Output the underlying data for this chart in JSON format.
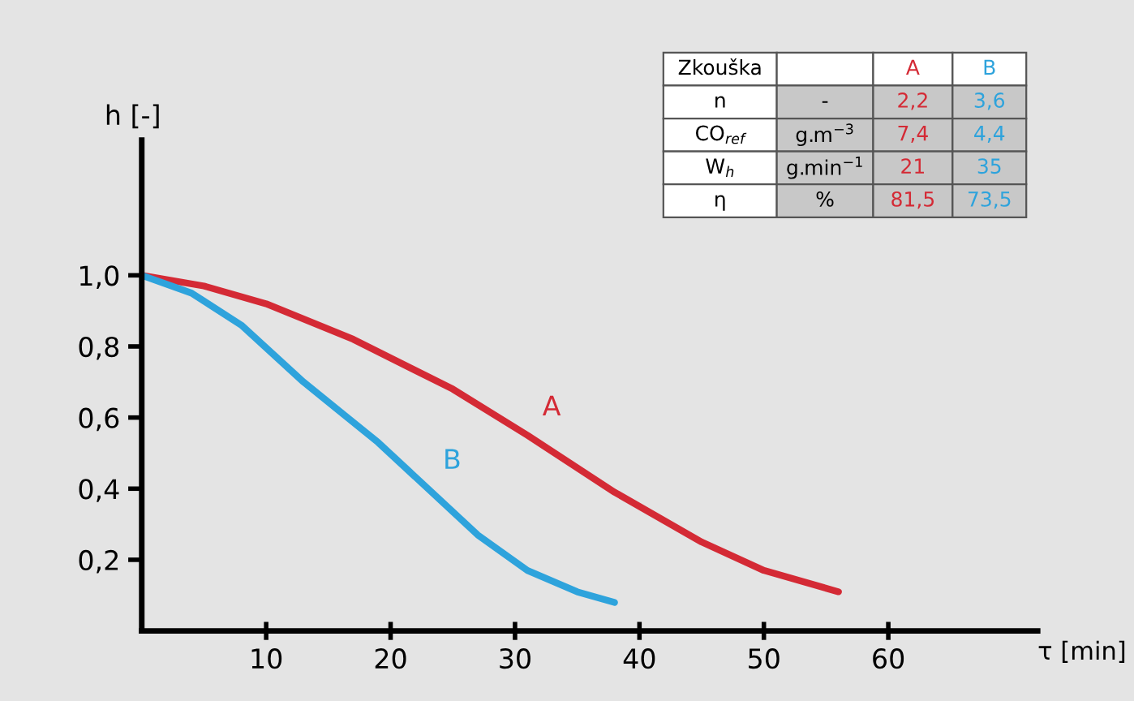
{
  "chart_data": {
    "type": "line",
    "xlabel": "τ [min]",
    "ylabel": "h [-]",
    "xlim": [
      0,
      72
    ],
    "ylim": [
      0,
      1.38
    ],
    "xticks": [
      10,
      20,
      30,
      40,
      50,
      60
    ],
    "yticks": [
      {
        "value": 0.2,
        "label": "0,2"
      },
      {
        "value": 0.4,
        "label": "0,4"
      },
      {
        "value": 0.6,
        "label": "0,6"
      },
      {
        "value": 0.8,
        "label": "0,8"
      },
      {
        "value": 1.0,
        "label": "1,0"
      }
    ],
    "grid": false,
    "legend": false,
    "marker": "none",
    "line_style": "solid",
    "series": [
      {
        "name": "A",
        "color": "#d42a35",
        "x": [
          0,
          5,
          10,
          17,
          25,
          31,
          38,
          45,
          50,
          56
        ],
        "values": [
          1.0,
          0.97,
          0.92,
          0.82,
          0.68,
          0.55,
          0.39,
          0.25,
          0.17,
          0.11
        ]
      },
      {
        "name": "B",
        "color": "#2ea3dc",
        "x": [
          0,
          4,
          8,
          13,
          19,
          23,
          27,
          31,
          35,
          38
        ],
        "values": [
          1.0,
          0.95,
          0.86,
          0.7,
          0.53,
          0.4,
          0.27,
          0.17,
          0.11,
          0.08
        ]
      }
    ],
    "annotations": [
      "Zkouška",
      "A",
      "B",
      "n",
      "-",
      "2,2",
      "3,6",
      "CO$_{ref}$",
      "g.m$^{−3}$",
      "7,4",
      "4,4",
      "W$_{h}$",
      "g.min$^{−1}$",
      "21",
      "35",
      "η",
      "%",
      "81,5",
      "73,5"
    ]
  }
}
